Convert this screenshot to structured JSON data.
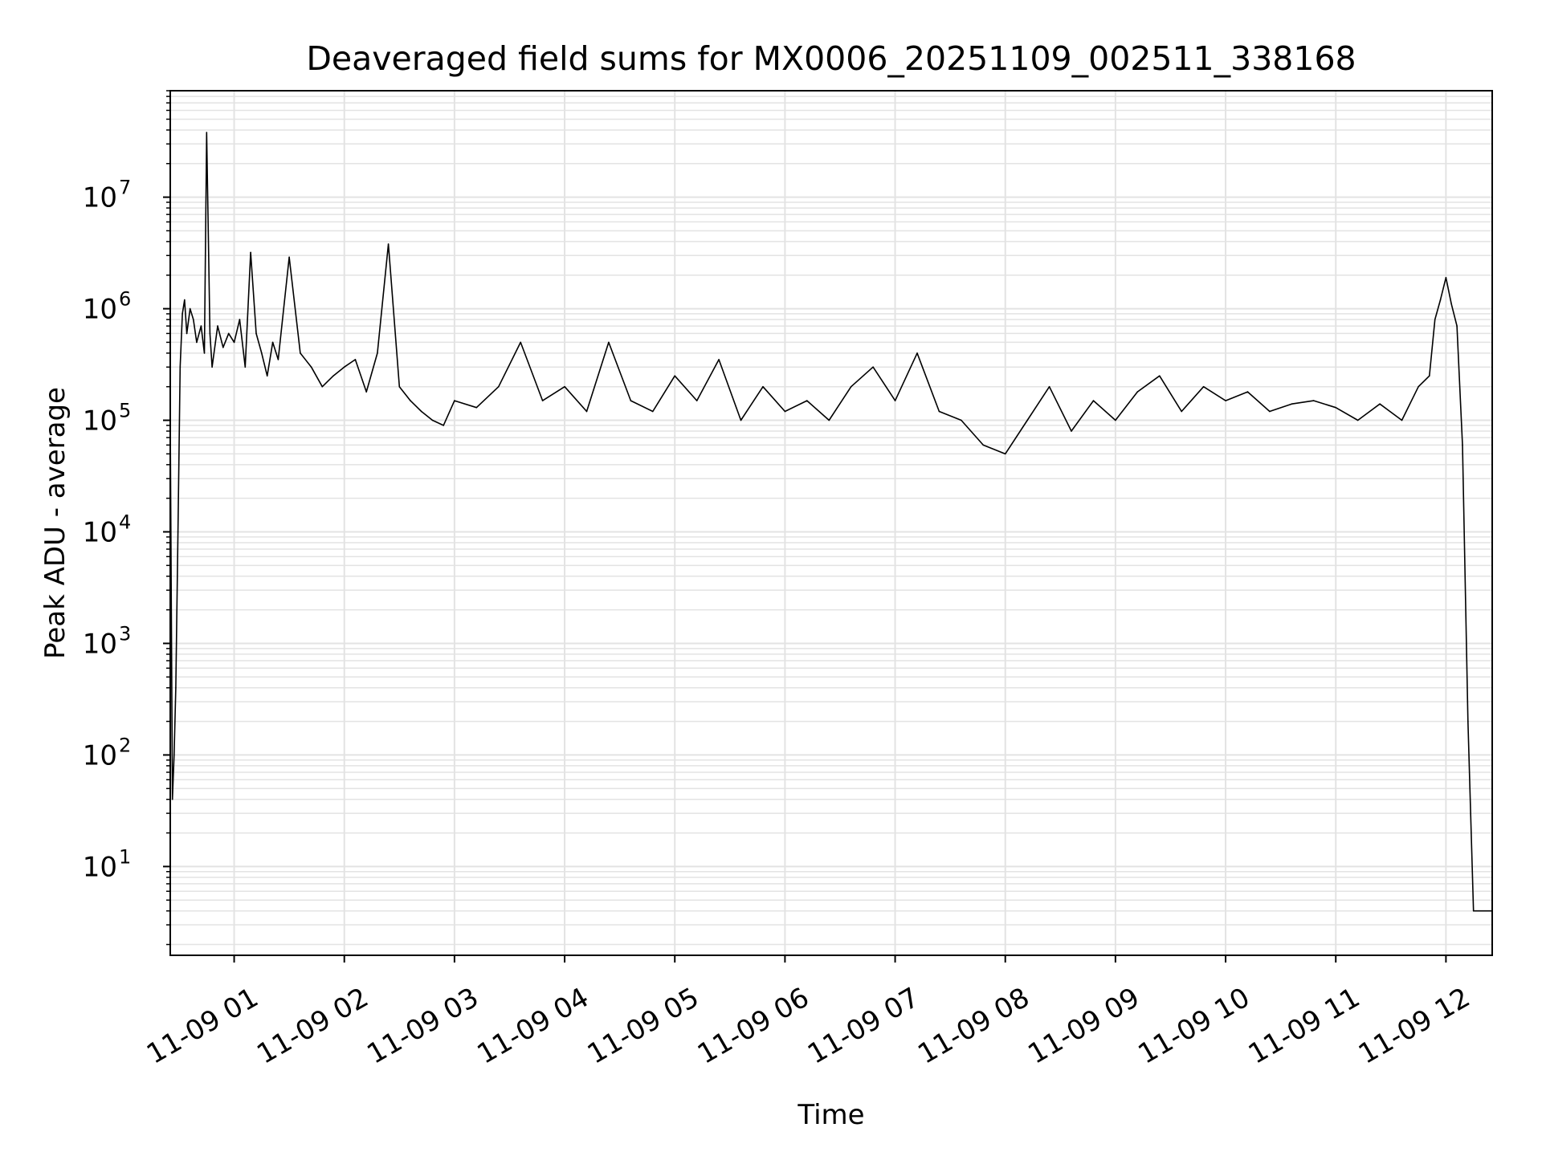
{
  "chart_data": {
    "type": "line",
    "title": "Deaveraged field sums for MX0006_20251109_002511_338168",
    "xlabel": "Time",
    "ylabel": "Peak ADU - average",
    "yscale": "log",
    "ylim": [
      1.6,
      90000000
    ],
    "xlim_hours": [
      0.42,
      12.42
    ],
    "grid": true,
    "line_color": "#000000",
    "grid_color": "#e3e3e3",
    "x_ticks": [
      {
        "hour": 1,
        "label": "11-09 01"
      },
      {
        "hour": 2,
        "label": "11-09 02"
      },
      {
        "hour": 3,
        "label": "11-09 03"
      },
      {
        "hour": 4,
        "label": "11-09 04"
      },
      {
        "hour": 5,
        "label": "11-09 05"
      },
      {
        "hour": 6,
        "label": "11-09 06"
      },
      {
        "hour": 7,
        "label": "11-09 07"
      },
      {
        "hour": 8,
        "label": "11-09 08"
      },
      {
        "hour": 9,
        "label": "11-09 09"
      },
      {
        "hour": 10,
        "label": "11-09 10"
      },
      {
        "hour": 11,
        "label": "11-09 11"
      },
      {
        "hour": 12,
        "label": "11-09 12"
      }
    ],
    "y_ticks": [
      {
        "value": 10,
        "base": "10",
        "exp": "1"
      },
      {
        "value": 100,
        "base": "10",
        "exp": "2"
      },
      {
        "value": 1000,
        "base": "10",
        "exp": "3"
      },
      {
        "value": 10000,
        "base": "10",
        "exp": "4"
      },
      {
        "value": 100000,
        "base": "10",
        "exp": "5"
      },
      {
        "value": 1000000,
        "base": "10",
        "exp": "6"
      },
      {
        "value": 10000000,
        "base": "10",
        "exp": "7"
      }
    ],
    "series": [
      {
        "name": "Deaveraged field sum",
        "x_hours": [
          0.42,
          0.44,
          0.455,
          0.47,
          0.49,
          0.51,
          0.53,
          0.55,
          0.57,
          0.6,
          0.63,
          0.66,
          0.7,
          0.73,
          0.75,
          0.78,
          0.8,
          0.85,
          0.9,
          0.95,
          1.0,
          1.05,
          1.1,
          1.15,
          1.2,
          1.25,
          1.3,
          1.35,
          1.4,
          1.5,
          1.6,
          1.7,
          1.8,
          1.9,
          2.0,
          2.1,
          2.2,
          2.3,
          2.4,
          2.5,
          2.6,
          2.7,
          2.8,
          2.9,
          3.0,
          3.2,
          3.4,
          3.6,
          3.8,
          4.0,
          4.2,
          4.4,
          4.6,
          4.8,
          5.0,
          5.2,
          5.4,
          5.6,
          5.8,
          6.0,
          6.2,
          6.4,
          6.6,
          6.8,
          7.0,
          7.2,
          7.4,
          7.6,
          7.8,
          8.0,
          8.2,
          8.4,
          8.6,
          8.8,
          9.0,
          9.2,
          9.4,
          9.6,
          9.8,
          10.0,
          10.2,
          10.4,
          10.6,
          10.8,
          11.0,
          11.2,
          11.4,
          11.6,
          11.75,
          11.85,
          11.9,
          11.95,
          12.0,
          12.05,
          12.1,
          12.15,
          12.2,
          12.25,
          12.28,
          12.3,
          12.42
        ],
        "values": [
          100000,
          40,
          100,
          400,
          10000,
          300000,
          900000,
          1200000,
          600000,
          1000000,
          800000,
          500000,
          700000,
          400000,
          38000000,
          600000,
          300000,
          700000,
          450000,
          600000,
          500000,
          800000,
          300000,
          3200000,
          600000,
          400000,
          250000,
          500000,
          350000,
          2900000,
          400000,
          300000,
          200000,
          250000,
          300000,
          350000,
          180000,
          400000,
          3800000,
          200000,
          150000,
          120000,
          100000,
          90000,
          150000,
          130000,
          200000,
          500000,
          150000,
          200000,
          120000,
          500000,
          150000,
          120000,
          250000,
          150000,
          350000,
          100000,
          200000,
          120000,
          150000,
          100000,
          200000,
          300000,
          150000,
          400000,
          120000,
          100000,
          60000,
          50000,
          100000,
          200000,
          80000,
          150000,
          100000,
          180000,
          250000,
          120000,
          200000,
          150000,
          180000,
          120000,
          140000,
          150000,
          130000,
          100000,
          140000,
          100000,
          200000,
          250000,
          800000,
          1200000,
          1900000,
          1100000,
          700000,
          60000,
          200,
          4,
          4,
          4,
          4
        ]
      }
    ]
  }
}
